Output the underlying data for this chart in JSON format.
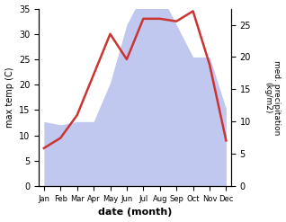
{
  "months": [
    "Jan",
    "Feb",
    "Mar",
    "Apr",
    "May",
    "Jun",
    "Jul",
    "Aug",
    "Sep",
    "Oct",
    "Nov",
    "Dec"
  ],
  "temp": [
    7.5,
    9.5,
    14,
    22,
    30,
    25,
    33,
    33,
    32.5,
    34.5,
    24,
    9
  ],
  "precip": [
    10,
    9.5,
    10,
    10,
    16,
    25,
    30,
    30,
    25,
    20,
    20,
    12
  ],
  "temp_color": "#cc3333",
  "precip_color": "#c0c8f0",
  "temp_ylim": [
    0,
    35
  ],
  "precip_ylim": [
    0,
    27.5
  ],
  "temp_yticks": [
    0,
    5,
    10,
    15,
    20,
    25,
    30,
    35
  ],
  "precip_yticks": [
    0,
    5,
    10,
    15,
    20,
    25
  ],
  "xlabel": "date (month)",
  "ylabel_left": "max temp (C)",
  "ylabel_right": "med. precipitation\n(kg/m2)",
  "bg_color": "#ffffff"
}
